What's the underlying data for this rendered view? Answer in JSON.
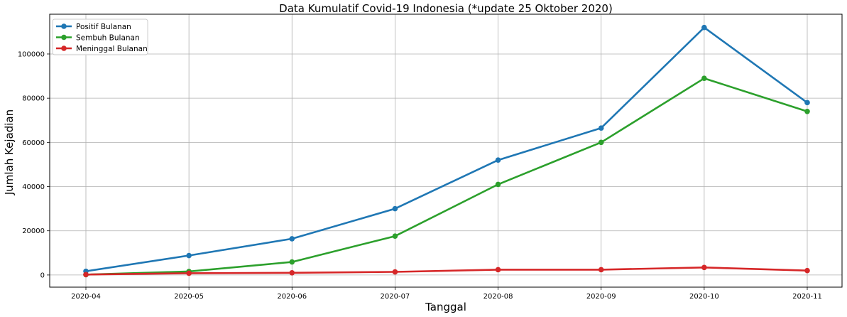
{
  "chart_data": {
    "type": "line",
    "title": "Data Kumulatif Covid-19 Indonesia (*update 25 Oktober 2020)",
    "xlabel": "Tanggal",
    "ylabel": "Jumlah Kejadian",
    "x": [
      "2020-04",
      "2020-05",
      "2020-06",
      "2020-07",
      "2020-08",
      "2020-09",
      "2020-10",
      "2020-11"
    ],
    "x_ticks": [
      "2020-04",
      "2020-05",
      "2020-06",
      "2020-07",
      "2020-08",
      "2020-09",
      "2020-10",
      "2020-11"
    ],
    "y_ticks": [
      0,
      20000,
      40000,
      60000,
      80000,
      100000
    ],
    "ylim": [
      -5500,
      118000
    ],
    "grid": true,
    "legend_position": "top-left",
    "series": [
      {
        "name": "Positif Bulanan",
        "color": "#1f77b4",
        "values": [
          1700,
          8800,
          16400,
          30000,
          52000,
          66500,
          112000,
          78000
        ]
      },
      {
        "name": "Sembuh Bulanan",
        "color": "#2ca02c",
        "values": [
          150,
          1600,
          5900,
          17600,
          41000,
          60000,
          89000,
          74000
        ]
      },
      {
        "name": "Meninggal Bulanan",
        "color": "#d62728",
        "values": [
          200,
          800,
          1000,
          1400,
          2400,
          2400,
          3400,
          2000
        ]
      }
    ]
  }
}
